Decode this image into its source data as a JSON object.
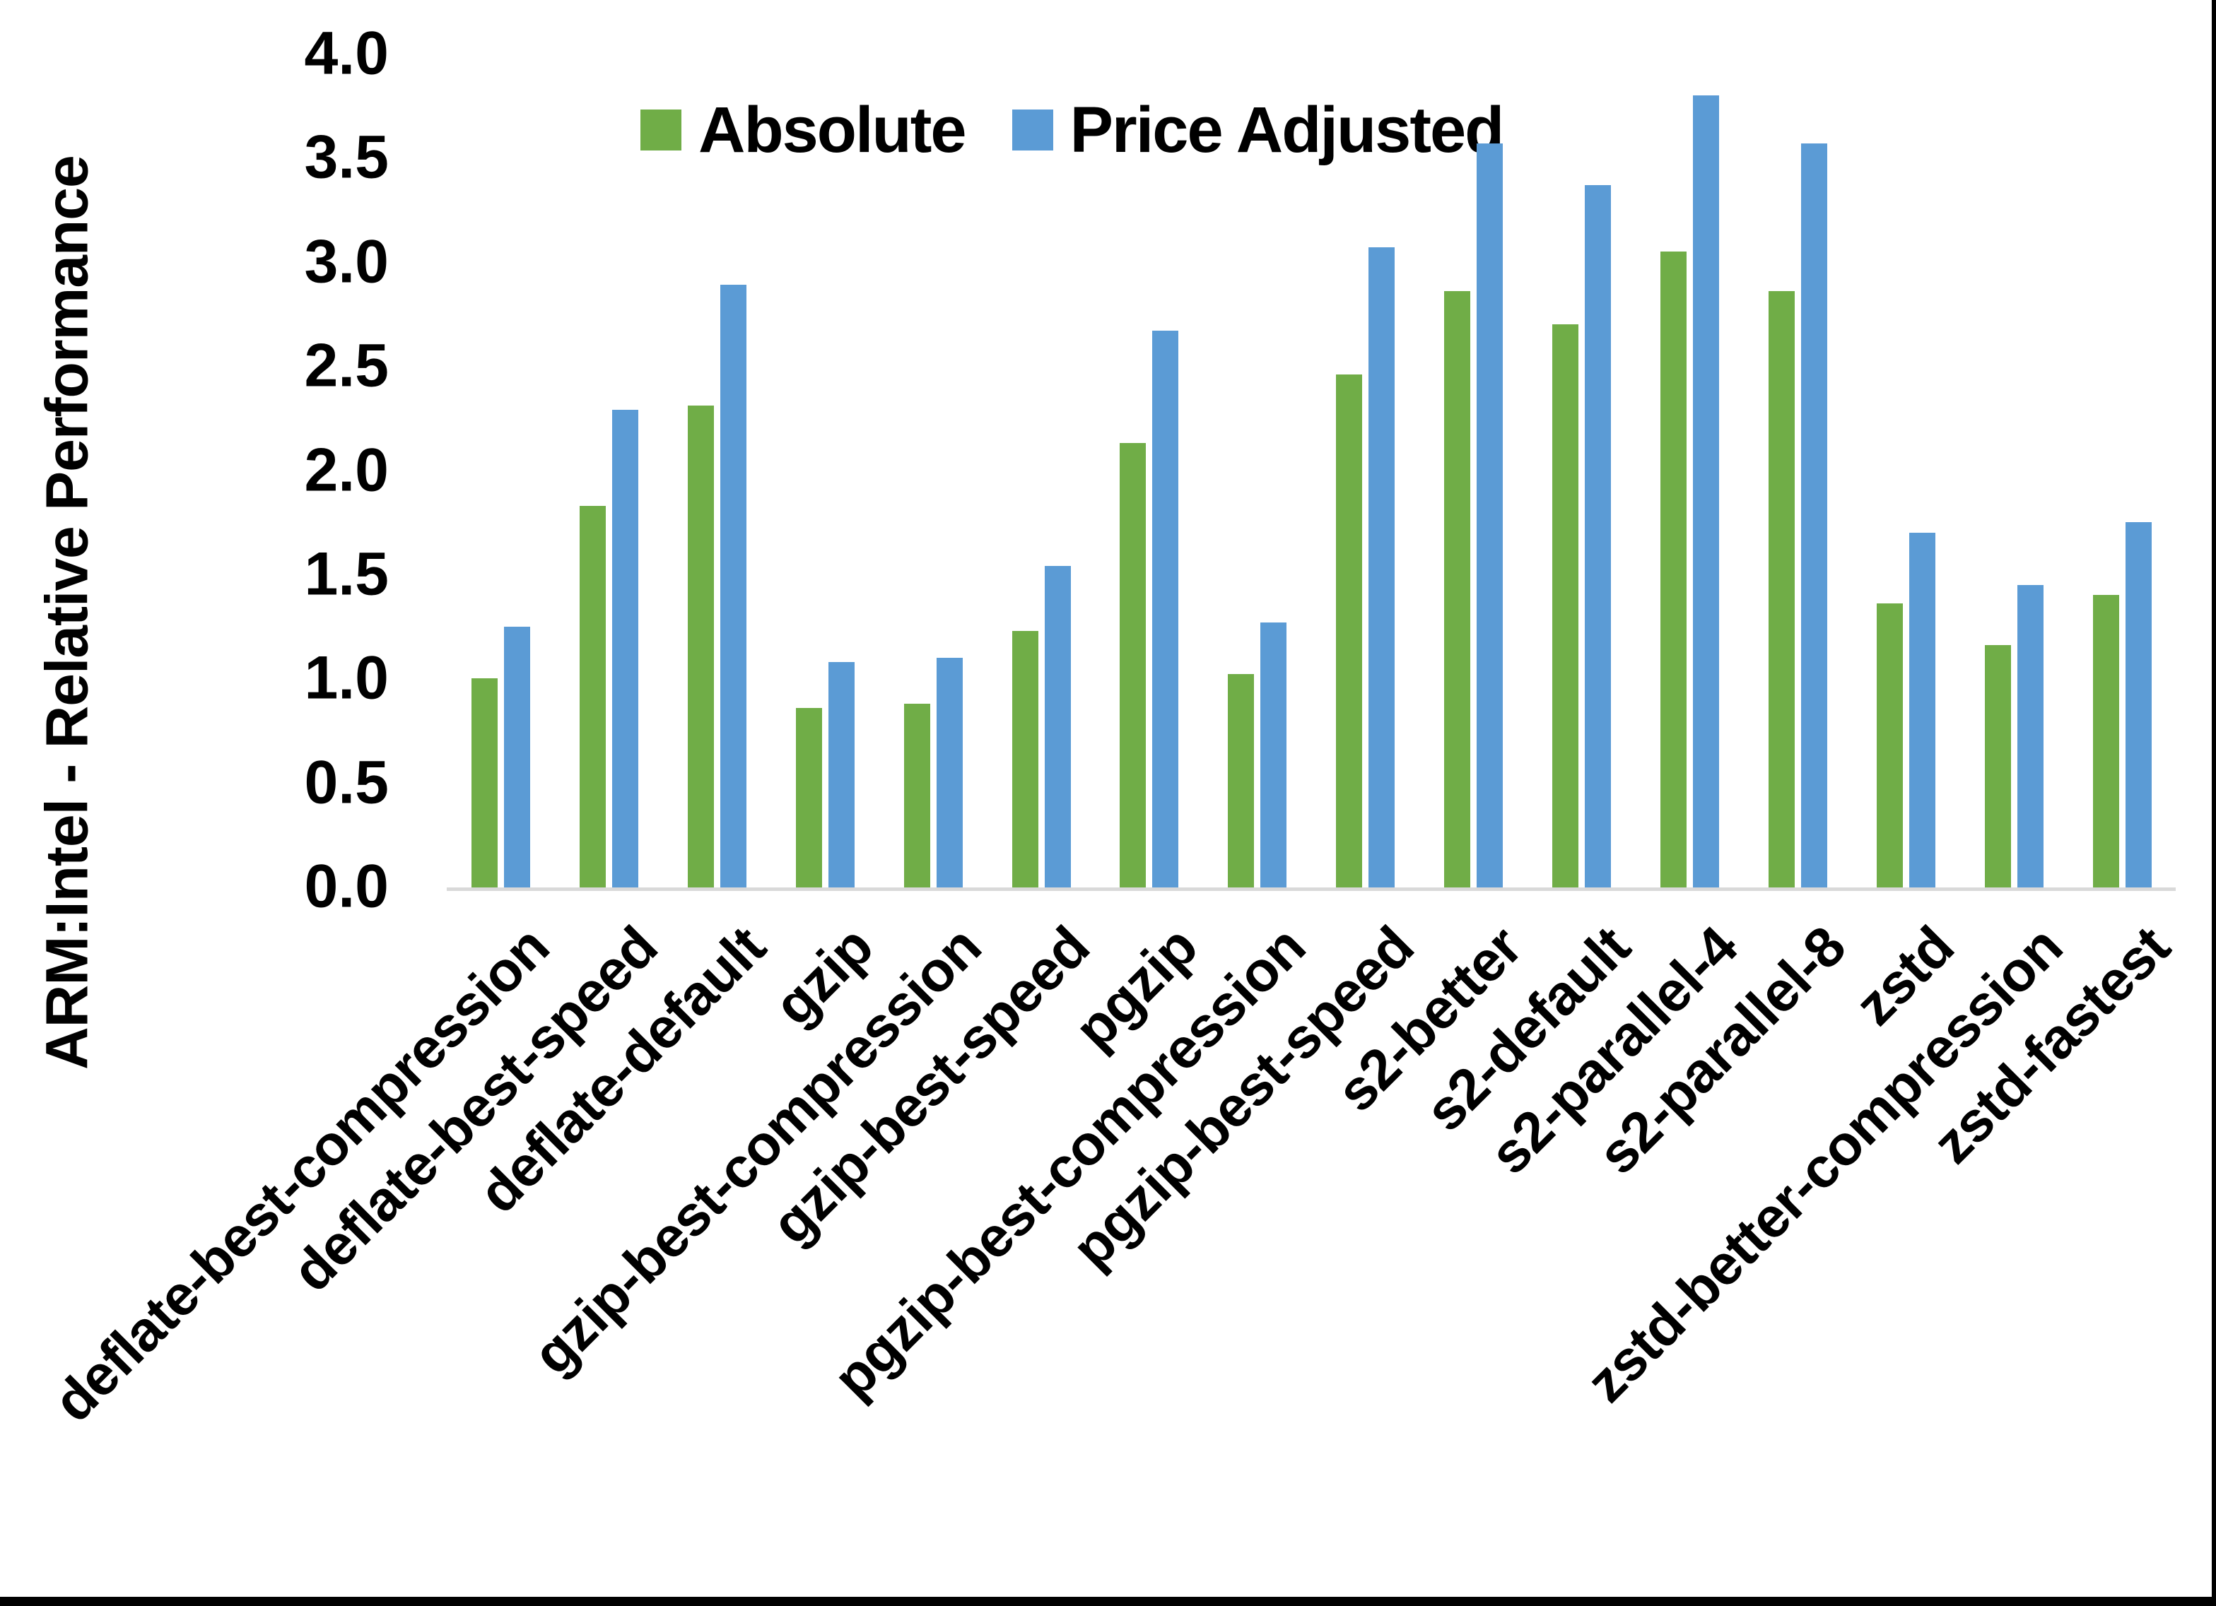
{
  "frame": {
    "background_color": "#ffffff",
    "right_border_color": "#000000",
    "bottom_border_color": "#000000"
  },
  "chart_data": {
    "type": "bar",
    "title": "",
    "xlabel": "",
    "ylabel": "ARM:Intel - Relative Performance",
    "ylim": [
      0.0,
      4.0
    ],
    "ytick_labels": [
      "0.0",
      "0.5",
      "1.0",
      "1.5",
      "2.0",
      "2.5",
      "3.0",
      "3.5",
      "4.0"
    ],
    "grid": false,
    "legend_position": "top-left-of-center",
    "axis_line_color": "#D9D9D9",
    "text_color": "#000000",
    "categories": [
      "deflate-best-compression",
      "deflate-best-speed",
      "deflate-default",
      "gzip",
      "gzip-best-compression",
      "gzip-best-speed",
      "pgzip",
      "pgzip-best-compression",
      "pgzip-best-speed",
      "s2-better",
      "s2-default",
      "s2-parallel-4",
      "s2-parallel-8",
      "zstd",
      "zstd-better-compression",
      "zstd-fastest"
    ],
    "series": [
      {
        "name": "Absolute",
        "color": "#70AD47",
        "values": [
          1.01,
          1.84,
          2.32,
          0.87,
          0.89,
          1.24,
          2.14,
          1.03,
          2.47,
          2.87,
          2.71,
          3.06,
          2.87,
          1.37,
          1.17,
          1.41
        ]
      },
      {
        "name": "Price Adjusted",
        "color": "#5B9BD5",
        "values": [
          1.26,
          2.3,
          2.9,
          1.09,
          1.11,
          1.55,
          2.68,
          1.28,
          3.08,
          3.58,
          3.38,
          3.81,
          3.58,
          1.71,
          1.46,
          1.76
        ]
      }
    ]
  }
}
